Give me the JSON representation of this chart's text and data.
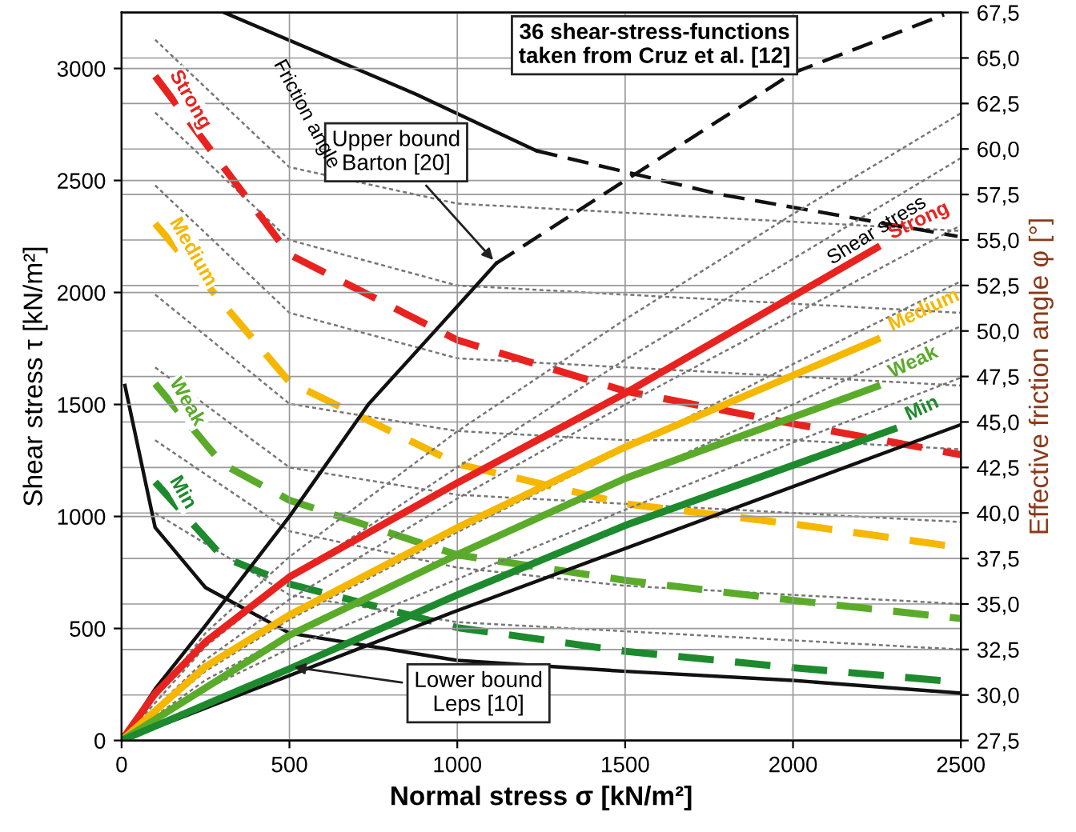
{
  "chart_data": {
    "type": "line",
    "xlabel": "Normal stress σ [kN/m²]",
    "ylabel": "Shear stress τ [kN/m²]",
    "y2label": "Effective friction angle φ [°]",
    "xlim": [
      0,
      2500
    ],
    "xticks": [
      0,
      500,
      1000,
      1500,
      2000,
      2500
    ],
    "ylim": [
      0,
      3250
    ],
    "yticks": [
      0,
      500,
      1000,
      1500,
      2000,
      2500,
      3000
    ],
    "y2lim": [
      27.5,
      67.5
    ],
    "y2ticks": [
      {
        "value": 27.5,
        "label": "27,5"
      },
      {
        "value": 30,
        "label": "30,0"
      },
      {
        "value": 32.5,
        "label": "32,5"
      },
      {
        "value": 35,
        "label": "35,0"
      },
      {
        "value": 37.5,
        "label": "37,5"
      },
      {
        "value": 40,
        "label": "40,0"
      },
      {
        "value": 42.5,
        "label": "42,5"
      },
      {
        "value": 45,
        "label": "45,0"
      },
      {
        "value": 47.5,
        "label": "47,5"
      },
      {
        "value": 50,
        "label": "50,0"
      },
      {
        "value": 52.5,
        "label": "52,5"
      },
      {
        "value": 55,
        "label": "55,0"
      },
      {
        "value": 57.5,
        "label": "57,5"
      },
      {
        "value": 60,
        "label": "60,0"
      },
      {
        "value": 62.5,
        "label": "62,5"
      },
      {
        "value": 65,
        "label": "65,0"
      },
      {
        "value": 67.5,
        "label": "67,5"
      }
    ],
    "grid": true,
    "legend": false,
    "marker": "none",
    "series": [
      {
        "color": "#777777",
        "line_style": "dotted",
        "x": [
          0,
          250,
          500,
          1000,
          1500,
          2000,
          2500
        ],
        "values": [
          0,
          480,
          820,
          1380,
          1880,
          2350,
          2800
        ]
      },
      {
        "color": "#777777",
        "line_style": "dotted",
        "x": [
          0,
          250,
          500,
          1000,
          1500,
          2000,
          2500
        ],
        "values": [
          0,
          420,
          720,
          1220,
          1700,
          2150,
          2600
        ]
      },
      {
        "color": "#777777",
        "line_style": "dotted",
        "x": [
          0,
          250,
          500,
          1000,
          1500,
          2000,
          2500
        ],
        "values": [
          0,
          360,
          630,
          1080,
          1500,
          1900,
          2300
        ]
      },
      {
        "color": "#777777",
        "line_style": "dotted",
        "x": [
          0,
          250,
          500,
          1000,
          1500,
          2000,
          2500
        ],
        "values": [
          0,
          310,
          540,
          930,
          1300,
          1680,
          2050
        ]
      },
      {
        "color": "#777777",
        "line_style": "dotted",
        "x": [
          0,
          250,
          500,
          1000,
          1500,
          2000,
          2500
        ],
        "values": [
          0,
          270,
          470,
          820,
          1160,
          1500,
          1850
        ]
      },
      {
        "color": "#777777",
        "line_style": "dotted",
        "x": [
          0,
          250,
          500,
          1000,
          1500,
          2000,
          2500
        ],
        "values": [
          0,
          230,
          410,
          720,
          1030,
          1330,
          1620
        ]
      },
      {
        "color": "#777777",
        "line_style": "dotted",
        "axis": "y2",
        "x": [
          100,
          500,
          1000,
          1500,
          2000,
          2500
        ],
        "values": [
          66,
          59,
          57,
          56.5,
          56,
          55.5
        ]
      },
      {
        "color": "#777777",
        "line_style": "dotted",
        "axis": "y2",
        "x": [
          100,
          500,
          1000,
          1500,
          2000,
          2500
        ],
        "values": [
          62,
          55,
          52.5,
          52,
          51.5,
          51
        ]
      },
      {
        "color": "#777777",
        "line_style": "dotted",
        "axis": "y2",
        "x": [
          100,
          500,
          1000,
          1500,
          2000,
          2500
        ],
        "values": [
          58,
          51,
          48.5,
          48,
          47.5,
          47
        ]
      },
      {
        "color": "#777777",
        "line_style": "dotted",
        "axis": "y2",
        "x": [
          100,
          500,
          1000,
          1500,
          2000,
          2500
        ],
        "values": [
          52,
          46,
          44.5,
          44,
          44,
          43.5
        ]
      },
      {
        "color": "#777777",
        "line_style": "dotted",
        "axis": "y2",
        "x": [
          100,
          500,
          1000,
          1500,
          2000,
          2500
        ],
        "values": [
          48,
          42.5,
          41,
          40.5,
          40,
          39.5
        ]
      },
      {
        "color": "#777777",
        "line_style": "dotted",
        "axis": "y2",
        "x": [
          100,
          500,
          1000,
          1500,
          2000,
          2500
        ],
        "values": [
          44,
          39,
          37,
          36,
          35.5,
          35
        ]
      },
      {
        "color": "#777777",
        "line_style": "dotted",
        "axis": "y2",
        "x": [
          100,
          500,
          1000,
          1500,
          2000,
          2500
        ],
        "values": [
          40,
          35.5,
          34,
          33.5,
          33,
          32.5
        ]
      },
      {
        "color": "#111111",
        "line_style": "solid",
        "x": [
          0,
          100,
          243,
          500,
          735,
          1116
        ],
        "values": [
          0,
          230,
          500,
          1000,
          1500,
          2130
        ]
      },
      {
        "color": "#111111",
        "line_style": "dashed",
        "x": [
          1116,
          1500,
          2000,
          2450
        ],
        "values": [
          2130,
          2500,
          2980,
          3240
        ]
      },
      {
        "color": "#111111",
        "line_style": "solid",
        "axis": "y2",
        "x": [
          305,
          878,
          1236
        ],
        "values": [
          67.5,
          63.0,
          59.9
        ]
      },
      {
        "color": "#111111",
        "line_style": "dashed",
        "axis": "y2",
        "x": [
          1236,
          1784,
          2490
        ],
        "values": [
          59.9,
          57.5,
          55.2
        ]
      },
      {
        "color": "#111111",
        "line_style": "solid",
        "x": [
          0,
          1000,
          2500
        ],
        "values": [
          0,
          580,
          1410
        ]
      },
      {
        "color": "#111111",
        "line_style": "solid",
        "axis": "y2",
        "x": [
          10,
          100,
          250,
          500,
          1000,
          1500,
          2000,
          2500
        ],
        "values": [
          47.0,
          39.2,
          35.9,
          33.4,
          31.9,
          31.3,
          30.8,
          30.1
        ]
      },
      {
        "name": "Strong",
        "color": "#e8231f",
        "line_style": "solid",
        "x": [
          0,
          100,
          250,
          500,
          1000,
          1500,
          2250
        ],
        "values": [
          0,
          210,
          440,
          730,
          1150,
          1550,
          2200
        ]
      },
      {
        "name": "Medium",
        "color": "#f5b700",
        "line_style": "solid",
        "x": [
          0,
          250,
          500,
          1000,
          1500,
          2250
        ],
        "values": [
          0,
          330,
          560,
          950,
          1310,
          1790
        ]
      },
      {
        "name": "Weak",
        "color": "#5aab2a",
        "line_style": "solid",
        "x": [
          0,
          500,
          1000,
          1500,
          2250
        ],
        "values": [
          0,
          470,
          830,
          1170,
          1580
        ]
      },
      {
        "name": "Min",
        "color": "#1e8a2e",
        "line_style": "solid",
        "x": [
          0,
          500,
          1000,
          1500,
          2300
        ],
        "values": [
          0,
          320,
          650,
          960,
          1390
        ]
      },
      {
        "name": "Strong",
        "color": "#e8231f",
        "line_style": "dashed",
        "axis": "y2",
        "x": [
          100,
          500,
          1000,
          1500,
          2000,
          2500
        ],
        "values": [
          64.0,
          54.2,
          49.5,
          46.7,
          44.9,
          43.2
        ]
      },
      {
        "name": "Medium",
        "color": "#f5b700",
        "line_style": "dashed",
        "axis": "y2",
        "x": [
          100,
          500,
          1000,
          1500,
          2000,
          2500
        ],
        "values": [
          55.9,
          47.2,
          42.7,
          40.5,
          39.4,
          38.1
        ]
      },
      {
        "name": "Weak",
        "color": "#5aab2a",
        "line_style": "dashed",
        "axis": "y2",
        "x": [
          100,
          300,
          500,
          1000,
          1500,
          2000,
          2500
        ],
        "values": [
          47.1,
          42.7,
          40.7,
          37.7,
          36.3,
          35.2,
          34.2
        ]
      },
      {
        "name": "Min",
        "color": "#1e8a2e",
        "line_style": "dashed",
        "axis": "y2",
        "x": [
          100,
          300,
          500,
          1000,
          1500,
          2000,
          2500
        ],
        "values": [
          41.7,
          37.6,
          36.1,
          33.7,
          32.4,
          31.5,
          30.7
        ]
      }
    ],
    "annotations": [
      "36 shear-stress-functions\ntaken from Cruz et al. [12]",
      {
        "text": "Upper bound\nBarton [20]",
        "x": 1116,
        "y": 2130
      },
      {
        "text": "Lower bound\nLeps [10]",
        "x": 500,
        "y": 330
      },
      "Friction angle",
      "Shear stress"
    ]
  }
}
